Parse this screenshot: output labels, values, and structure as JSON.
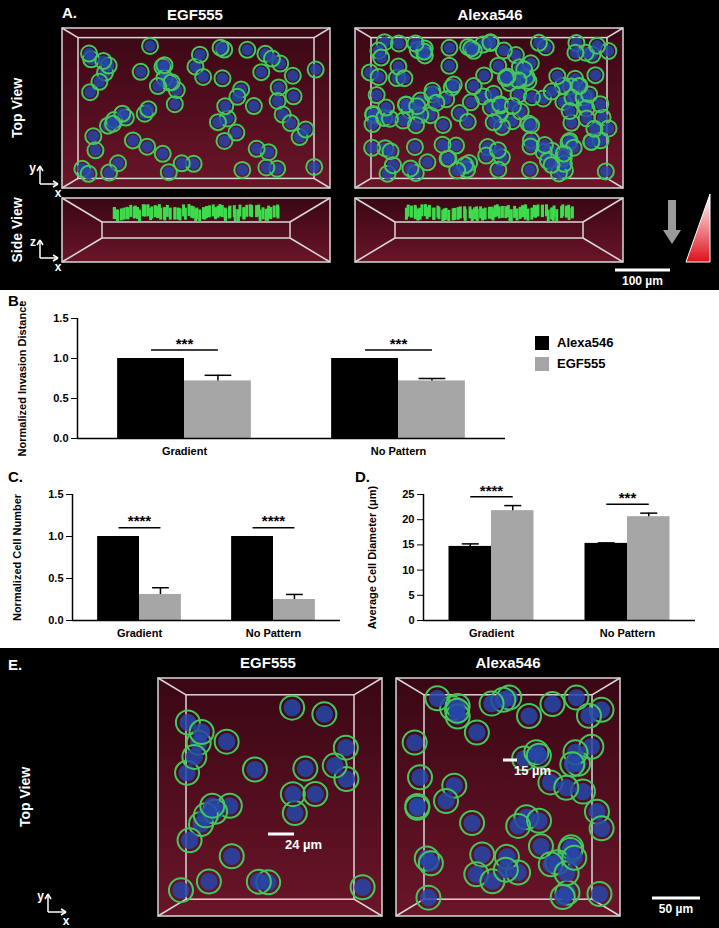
{
  "panels": [
    {
      "label": "A.",
      "columns": [
        "EGF555",
        "Alexa546"
      ],
      "rows": [
        {
          "label": "Top View",
          "axes": [
            "y",
            "x"
          ]
        },
        {
          "label": "Side View",
          "axes": [
            "z",
            "x"
          ]
        }
      ],
      "scale_bar": "100 µm"
    },
    {
      "label": "E.",
      "columns": [
        "EGF555",
        "Alexa546"
      ],
      "rows": [
        {
          "label": "Top View",
          "axes": [
            "y",
            "x"
          ]
        }
      ],
      "measurements": [
        "24 µm",
        "15 µm"
      ],
      "scale_bar": "50 µm"
    }
  ],
  "chart_data": [
    {
      "type": "bar",
      "title": "B.",
      "y_label": "Normalized Invasion Distance",
      "categories": [
        "Gradient",
        "No Pattern"
      ],
      "series": [
        {
          "name": "Alexa546",
          "color": "#000000",
          "values": [
            1.0,
            1.0
          ],
          "errors": [
            0,
            0
          ]
        },
        {
          "name": "EGF555",
          "color": "#a6a6a6",
          "values": [
            0.72,
            0.72
          ],
          "errors": [
            0.07,
            0.03
          ]
        }
      ],
      "significance": [
        "***",
        "***"
      ],
      "ylim": [
        0,
        1.5
      ],
      "yticks": [
        {
          "value": 0,
          "label": "0.0"
        },
        0.5,
        {
          "value": 1,
          "label": "1.0"
        },
        1.5
      ],
      "legend": "right"
    },
    {
      "type": "bar",
      "title": "C.",
      "y_label": "Normalized Cell Number",
      "categories": [
        "Gradient",
        "No Pattern"
      ],
      "series": [
        {
          "name": "Alexa546",
          "color": "#000000",
          "values": [
            1.0,
            1.0
          ],
          "errors": [
            0,
            0
          ]
        },
        {
          "name": "EGF555",
          "color": "#a6a6a6",
          "values": [
            0.31,
            0.25
          ],
          "errors": [
            0.08,
            0.06
          ]
        }
      ],
      "significance": [
        "****",
        "****"
      ],
      "ylim": [
        0,
        1.5
      ],
      "yticks": [
        {
          "value": 0,
          "label": "0.0"
        },
        0.5,
        {
          "value": 1,
          "label": "1.0"
        },
        1.5
      ]
    },
    {
      "type": "bar",
      "title": "D.",
      "y_label": "Average Cell Diameter (μm)",
      "categories": [
        "Gradient",
        "No Pattern"
      ],
      "series": [
        {
          "name": "Alexa546",
          "color": "#000000",
          "values": [
            14.7,
            15.3
          ],
          "errors": [
            0.5,
            0.1
          ]
        },
        {
          "name": "EGF555",
          "color": "#a6a6a6",
          "values": [
            21.8,
            20.6
          ],
          "errors": [
            1.0,
            0.7
          ]
        }
      ],
      "significance": [
        "****",
        "***"
      ],
      "ylim": [
        0,
        25
      ],
      "yticks": [
        0,
        5,
        10,
        15,
        20,
        25
      ]
    }
  ]
}
